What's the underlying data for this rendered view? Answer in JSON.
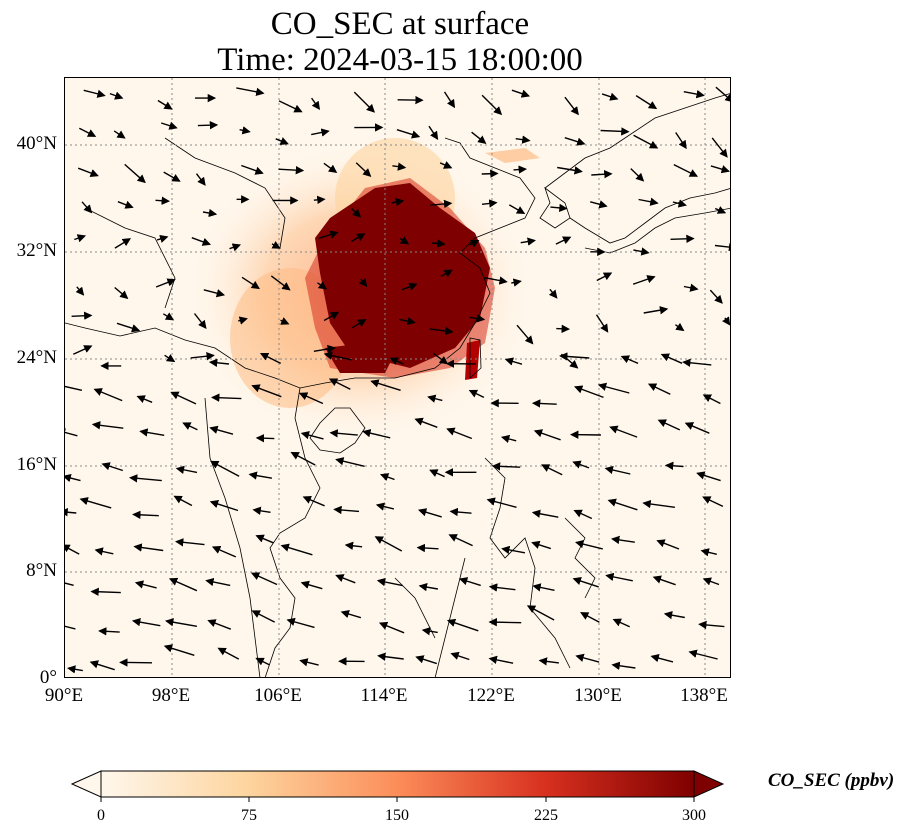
{
  "title": {
    "line1": "CO_SEC at surface",
    "line2": "Time: 2024-03-15 18:00:00"
  },
  "map": {
    "type": "filled-contour-map-with-wind-vectors",
    "lon_range": [
      90,
      140
    ],
    "lat_range": [
      0,
      45
    ],
    "lat_ticks": [
      "40°N",
      "32°N",
      "24°N",
      "16°N",
      "8°N",
      "0°"
    ],
    "lon_ticks": [
      "90°E",
      "98°E",
      "106°E",
      "114°E",
      "122°E",
      "130°E",
      "138°E"
    ],
    "gridlines": "dotted",
    "plume_center": {
      "lon": 115,
      "lat": 29
    },
    "wind_field": "northeasterly over South China Sea, westerly/northwesterly over northern China"
  },
  "colorbar": {
    "label": "CO_SEC (ppbv)",
    "ticks": [
      "0",
      "75",
      "150",
      "225",
      "300"
    ],
    "range": [
      0,
      300
    ],
    "colormap": "OrRd",
    "colors": [
      "#fff7ec",
      "#fdd49e",
      "#fc8d59",
      "#d7301f",
      "#7f0000"
    ],
    "extend": "both"
  }
}
